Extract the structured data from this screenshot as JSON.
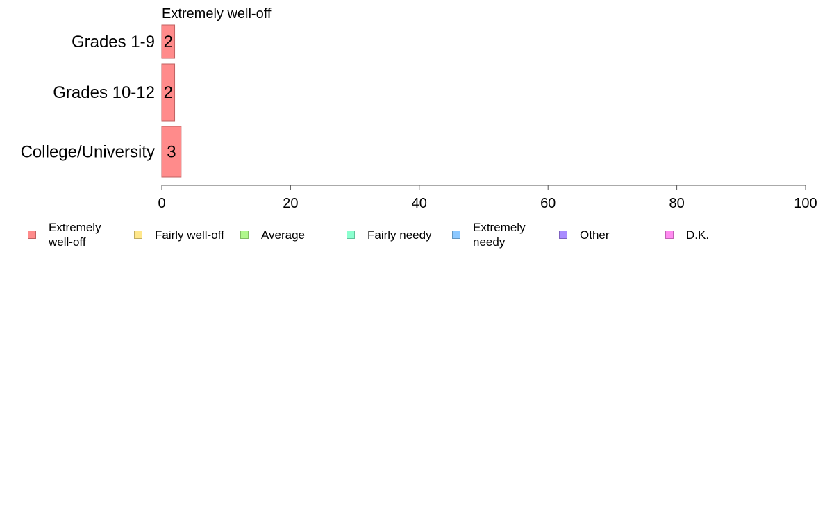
{
  "chart_data": {
    "type": "bar",
    "orientation": "horizontal",
    "title": "Extremely well-off",
    "categories": [
      "Grades 1-9",
      "Grades 10-12",
      "College/University"
    ],
    "series": [
      {
        "name": "Extremely well-off",
        "values": [
          2,
          2,
          3
        ],
        "labels": [
          "2",
          "2",
          "3"
        ],
        "color": "#ff8b8b",
        "stroke": "#c06262"
      }
    ],
    "xlim": [
      0,
      100
    ],
    "xticks": [
      0,
      20,
      40,
      60,
      80,
      100
    ],
    "xtick_labels": [
      "0",
      "20",
      "40",
      "60",
      "80",
      "100"
    ],
    "grid": false,
    "legend_position": "bottom"
  },
  "legend": {
    "items": [
      {
        "label": "Extremely\nwell-off",
        "color": "#ff8b8b",
        "border": "#c06262"
      },
      {
        "label": "Fairly well-off",
        "color": "#ffe78b",
        "border": "#c0ad62"
      },
      {
        "label": "Average",
        "color": "#b0f78b",
        "border": "#82bd62"
      },
      {
        "label": "Fairly needy",
        "color": "#8bffcf",
        "border": "#62c09b"
      },
      {
        "label": "Extremely\nneedy",
        "color": "#8bc8ff",
        "border": "#6296c0"
      },
      {
        "label": "Other",
        "color": "#a98bff",
        "border": "#7e62c0"
      },
      {
        "label": "D.K.",
        "color": "#ff8bf0",
        "border": "#c062b4"
      }
    ]
  }
}
